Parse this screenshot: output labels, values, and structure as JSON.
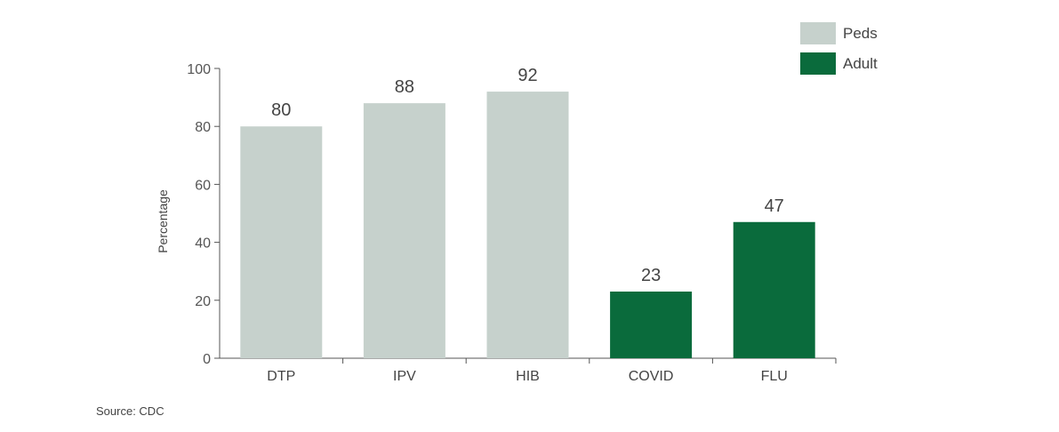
{
  "chart_data": {
    "type": "bar",
    "categories": [
      "DTP",
      "IPV",
      "HIB",
      "COVID",
      "FLU"
    ],
    "values": [
      80,
      88,
      92,
      23,
      47
    ],
    "groups": [
      "Peds",
      "Peds",
      "Peds",
      "Adult",
      "Adult"
    ],
    "title": "",
    "xlabel": "",
    "ylabel": "Percentage",
    "ylim": [
      0,
      100
    ],
    "yticks": [
      0,
      20,
      40,
      60,
      80,
      100
    ],
    "grid": false,
    "legend": {
      "placement": "top-right",
      "entries": [
        {
          "name": "Peds",
          "color": "#c6d1cc"
        },
        {
          "name": "Adult",
          "color": "#0a6b3c"
        }
      ]
    }
  },
  "colors": {
    "peds": "#c6d1cc",
    "adult": "#0a6b3c",
    "axis": "#555555"
  },
  "source": "Source: CDC"
}
